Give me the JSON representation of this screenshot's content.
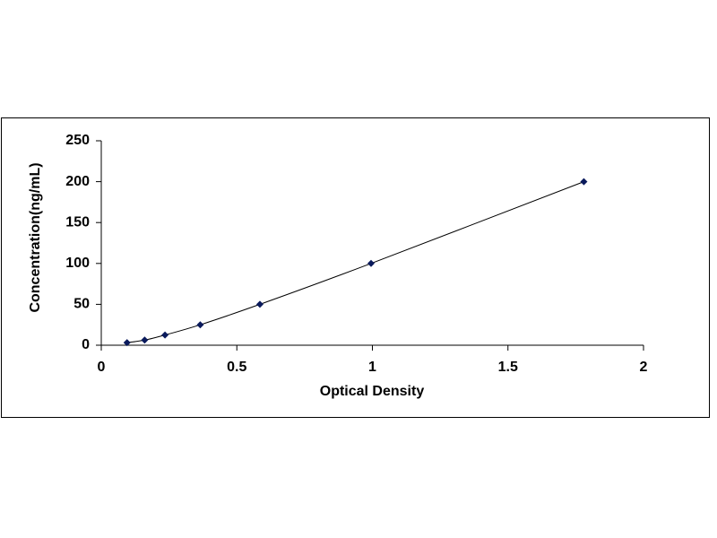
{
  "chart_data": {
    "type": "scatter",
    "x_label": "Optical Density",
    "y_label": "Concentration(ng/mL)",
    "series": [
      {
        "color": "#0a1a5c",
        "x": [
          0.095,
          0.16,
          0.235,
          0.365,
          0.585,
          0.995,
          1.78
        ],
        "values": [
          3.125,
          6.25,
          12.5,
          25,
          50,
          100,
          200
        ]
      }
    ],
    "xlim": [
      0,
      2
    ],
    "xticks": [
      0,
      0.5,
      1,
      1.5,
      2
    ],
    "ylim": [
      0,
      250
    ],
    "yticks": [
      0,
      50,
      100,
      150,
      200,
      250
    ],
    "grid": false
  }
}
